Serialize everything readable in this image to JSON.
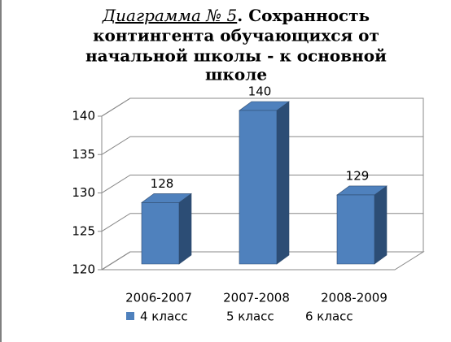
{
  "chart_data": {
    "type": "bar3d",
    "title": [
      "Диаграмма № 5",
      ". Сохранность",
      "контингента обучающихся от",
      "начальной школы - к основной",
      "школе"
    ],
    "categories": [
      "2006-2007",
      "2007-2008",
      "2008-2009"
    ],
    "series": [
      {
        "name": "4 класс",
        "color": "#4f81bd",
        "values": [
          128,
          140,
          129
        ]
      }
    ],
    "legend_notes": [
      "5 класс",
      "6 класс"
    ],
    "ylim": [
      120,
      140
    ],
    "yticks": [
      120,
      125,
      130,
      135,
      140
    ],
    "grid": true
  }
}
